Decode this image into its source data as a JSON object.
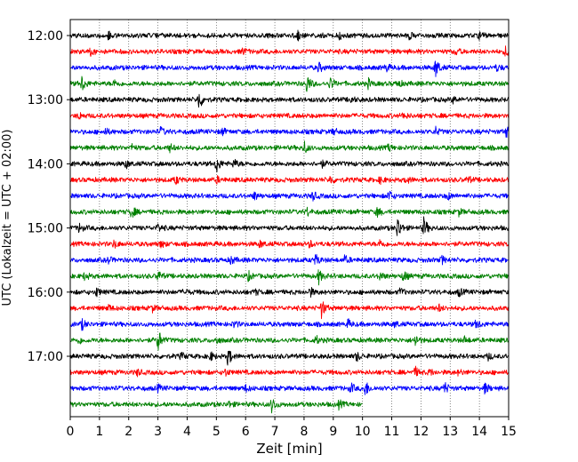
{
  "chart_data": {
    "type": "line",
    "subtype": "helicorder",
    "title": "",
    "xlabel": "Zeit  [min]",
    "ylabel": "UTC (Lokalzeit = UTC + 02:00)",
    "xlim": [
      0,
      15
    ],
    "x_ticks": [
      "0",
      "1",
      "2",
      "3",
      "4",
      "5",
      "6",
      "7",
      "8",
      "9",
      "10",
      "11",
      "12",
      "13",
      "14",
      "15"
    ],
    "grid": "vertical dotted lines at every minute",
    "legend": "none",
    "row_interval_minutes": 15,
    "first_row_time": "12:00",
    "y_tick_labels": [
      "12:00",
      "13:00",
      "14:00",
      "15:00",
      "16:00",
      "17:00"
    ],
    "color_cycle": [
      "#000000",
      "#ff0000",
      "#0000ff",
      "#008000"
    ],
    "traces": [
      {
        "start": "12:00",
        "color": "#000000",
        "end_min": 15,
        "events": [
          [
            1.3,
            0.5
          ],
          [
            7.8,
            0.5
          ],
          [
            9.2,
            0.4
          ],
          [
            11.6,
            0.4
          ],
          [
            14.0,
            0.4
          ]
        ]
      },
      {
        "start": "12:15",
        "color": "#ff0000",
        "end_min": 15,
        "events": [
          [
            0.7,
            0.4
          ],
          [
            5.9,
            0.4
          ],
          [
            13.2,
            0.4
          ],
          [
            14.9,
            0.6
          ]
        ]
      },
      {
        "start": "12:30",
        "color": "#0000ff",
        "end_min": 15,
        "events": [
          [
            8.5,
            0.6
          ],
          [
            10.8,
            0.5
          ],
          [
            12.5,
            1.3
          ],
          [
            14.6,
            0.4
          ]
        ]
      },
      {
        "start": "12:45",
        "color": "#008000",
        "end_min": 15,
        "events": [
          [
            0.4,
            1.0
          ],
          [
            1.5,
            0.4
          ],
          [
            8.1,
            1.2
          ],
          [
            8.9,
            0.8
          ],
          [
            10.2,
            0.5
          ],
          [
            11.2,
            0.5
          ]
        ]
      },
      {
        "start": "13:00",
        "color": "#000000",
        "end_min": 15,
        "events": [
          [
            4.4,
            1.3
          ],
          [
            9.6,
            0.4
          ],
          [
            13.1,
            0.4
          ]
        ]
      },
      {
        "start": "13:15",
        "color": "#ff0000",
        "end_min": 15,
        "events": [
          [
            0.3,
            0.4
          ],
          [
            11.4,
            0.4
          ]
        ]
      },
      {
        "start": "13:30",
        "color": "#0000ff",
        "end_min": 15,
        "events": [
          [
            1.2,
            0.4
          ],
          [
            3.1,
            0.5
          ],
          [
            5.2,
            0.4
          ],
          [
            9.0,
            0.4
          ],
          [
            12.5,
            0.5
          ],
          [
            14.9,
            0.7
          ]
        ]
      },
      {
        "start": "13:45",
        "color": "#008000",
        "end_min": 15,
        "events": [
          [
            2.1,
            0.4
          ],
          [
            3.4,
            0.5
          ],
          [
            8.0,
            0.8
          ],
          [
            10.9,
            0.4
          ]
        ]
      },
      {
        "start": "14:00",
        "color": "#000000",
        "end_min": 15,
        "events": [
          [
            1.9,
            0.5
          ],
          [
            5.0,
            1.2
          ],
          [
            5.6,
            0.6
          ],
          [
            8.6,
            0.4
          ]
        ]
      },
      {
        "start": "14:15",
        "color": "#ff0000",
        "end_min": 15,
        "events": [
          [
            3.6,
            0.5
          ],
          [
            5.0,
            0.4
          ],
          [
            8.9,
            0.5
          ],
          [
            10.6,
            0.4
          ],
          [
            11.5,
            0.5
          ],
          [
            13.6,
            0.4
          ]
        ]
      },
      {
        "start": "14:30",
        "color": "#0000ff",
        "end_min": 15,
        "events": [
          [
            6.3,
            0.5
          ],
          [
            8.3,
            0.6
          ],
          [
            10.9,
            0.7
          ],
          [
            12.9,
            0.5
          ]
        ]
      },
      {
        "start": "14:45",
        "color": "#008000",
        "end_min": 15,
        "events": [
          [
            2.1,
            0.8
          ],
          [
            8.1,
            0.5
          ],
          [
            10.5,
            0.6
          ],
          [
            13.3,
            0.4
          ]
        ]
      },
      {
        "start": "15:00",
        "color": "#000000",
        "end_min": 15,
        "events": [
          [
            0.3,
            0.5
          ],
          [
            3.0,
            0.5
          ],
          [
            11.2,
            1.5
          ],
          [
            12.1,
            1.3
          ]
        ]
      },
      {
        "start": "15:15",
        "color": "#ff0000",
        "end_min": 15,
        "events": [
          [
            1.5,
            0.5
          ],
          [
            3.1,
            0.4
          ],
          [
            6.5,
            0.4
          ],
          [
            8.2,
            0.4
          ],
          [
            10.6,
            0.5
          ]
        ]
      },
      {
        "start": "15:30",
        "color": "#0000ff",
        "end_min": 15,
        "events": [
          [
            1.3,
            0.4
          ],
          [
            5.5,
            0.5
          ],
          [
            8.4,
            0.7
          ],
          [
            9.4,
            0.5
          ],
          [
            12.7,
            0.5
          ]
        ]
      },
      {
        "start": "15:45",
        "color": "#008000",
        "end_min": 15,
        "events": [
          [
            0.5,
            0.5
          ],
          [
            3.0,
            0.6
          ],
          [
            6.1,
            0.5
          ],
          [
            8.5,
            0.9
          ],
          [
            10.6,
            0.5
          ],
          [
            11.4,
            0.7
          ]
        ]
      },
      {
        "start": "16:00",
        "color": "#000000",
        "end_min": 15,
        "events": [
          [
            0.9,
            0.5
          ],
          [
            3.9,
            0.4
          ],
          [
            6.3,
            0.4
          ],
          [
            8.2,
            0.6
          ],
          [
            11.3,
            0.5
          ],
          [
            13.3,
            0.5
          ]
        ]
      },
      {
        "start": "16:15",
        "color": "#ff0000",
        "end_min": 15,
        "events": [
          [
            1.3,
            0.4
          ],
          [
            2.8,
            0.4
          ],
          [
            8.6,
            1.2
          ],
          [
            12.6,
            0.4
          ]
        ]
      },
      {
        "start": "16:30",
        "color": "#0000ff",
        "end_min": 15,
        "events": [
          [
            0.4,
            0.6
          ],
          [
            5.6,
            0.4
          ],
          [
            9.5,
            0.5
          ],
          [
            11.1,
            0.4
          ],
          [
            13.9,
            0.6
          ]
        ]
      },
      {
        "start": "16:45",
        "color": "#008000",
        "end_min": 15,
        "events": [
          [
            0.3,
            0.4
          ],
          [
            3.0,
            1.5
          ],
          [
            5.0,
            0.4
          ],
          [
            8.4,
            0.5
          ],
          [
            11.8,
            0.8
          ],
          [
            13.5,
            0.4
          ]
        ]
      },
      {
        "start": "17:00",
        "color": "#000000",
        "end_min": 15,
        "events": [
          [
            3.8,
            0.4
          ],
          [
            4.8,
            0.5
          ],
          [
            5.4,
            1.2
          ],
          [
            9.8,
            0.6
          ],
          [
            14.3,
            0.4
          ]
        ]
      },
      {
        "start": "17:15",
        "color": "#ff0000",
        "end_min": 15,
        "events": [
          [
            2.3,
            0.4
          ],
          [
            5.3,
            0.4
          ],
          [
            11.8,
            0.6
          ],
          [
            12.3,
            0.4
          ],
          [
            13.3,
            0.4
          ]
        ]
      },
      {
        "start": "17:30",
        "color": "#0000ff",
        "end_min": 15,
        "events": [
          [
            3.0,
            0.4
          ],
          [
            6.0,
            0.4
          ],
          [
            9.6,
            0.6
          ],
          [
            10.1,
            1.0
          ],
          [
            12.8,
            0.8
          ],
          [
            14.2,
            0.7
          ]
        ]
      },
      {
        "start": "17:45",
        "color": "#008000",
        "end_min": 10,
        "events": [
          [
            5.4,
            0.4
          ],
          [
            6.9,
            1.0
          ],
          [
            9.2,
            0.5
          ],
          [
            10.0,
            0.4
          ]
        ]
      }
    ]
  }
}
